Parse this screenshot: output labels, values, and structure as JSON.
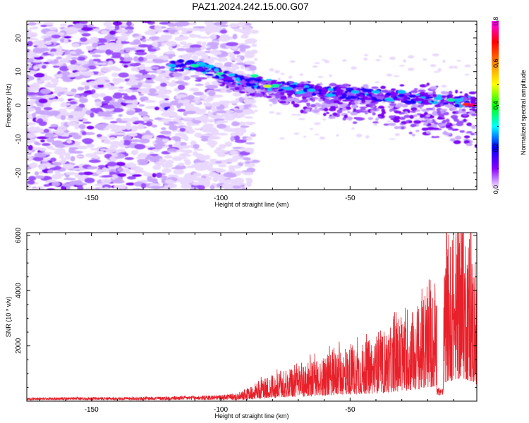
{
  "title": "PAZ1.2024.242.15.00.G07",
  "chart_data": [
    {
      "type": "heatmap",
      "xlabel": "Height of straight line (km)",
      "ylabel": "Frequency (Hz)",
      "xlim": [
        -175,
        -1
      ],
      "ylim": [
        -25,
        25
      ],
      "xticks": [
        -150,
        -100,
        -50
      ],
      "yticks": [
        -20,
        -10,
        0,
        10,
        20
      ],
      "colorbar": {
        "label": "Normalized spectral amplitude",
        "range": [
          0.0,
          0.8
        ],
        "ticks": [
          "0.0",
          "0.2",
          "0.4",
          "0.6",
          "0.8"
        ],
        "colors": [
          "#ffffff",
          "#8800ff",
          "#0000ff",
          "#00ffff",
          "#00ff00",
          "#ffff00",
          "#ff8800",
          "#ff0000",
          "#ff00ff"
        ]
      },
      "ridge": {
        "description_points_x": [
          -120,
          -110,
          -100,
          -90,
          -80,
          -70,
          -60,
          -50,
          -40,
          -30,
          -20,
          -10,
          -1
        ],
        "description_points_y": [
          11.5,
          12,
          9,
          7,
          6,
          5,
          4,
          3.5,
          3,
          2.5,
          2,
          1.5,
          0.5
        ],
        "peak_amplitude": 0.8
      }
    },
    {
      "type": "line",
      "xlabel": "Height of straight line (km)",
      "ylabel": "SNR (10 * v/v)",
      "xlim": [
        -175,
        -1
      ],
      "ylim": [
        0,
        6100
      ],
      "xticks": [
        -150,
        -100,
        -50
      ],
      "yticks": [
        2000,
        4000,
        6000
      ],
      "color": "#e8202a",
      "series": [
        {
          "x": [
            -175,
            -160,
            -150,
            -140,
            -130,
            -120,
            -110,
            -100,
            -95,
            -90,
            -85,
            -80,
            -75,
            -70,
            -65,
            -60,
            -55,
            -50,
            -45,
            -40,
            -35,
            -30,
            -25,
            -20,
            -17,
            -15,
            -13,
            -10,
            -7,
            -5,
            -3,
            -1
          ],
          "y": [
            70,
            80,
            90,
            85,
            100,
            110,
            130,
            150,
            200,
            350,
            600,
            750,
            900,
            1000,
            1200,
            1300,
            1500,
            1600,
            1700,
            1800,
            2100,
            2400,
            2700,
            3100,
            3400,
            300,
            4500,
            5000,
            5400,
            5200,
            4500,
            3500
          ]
        }
      ]
    }
  ]
}
